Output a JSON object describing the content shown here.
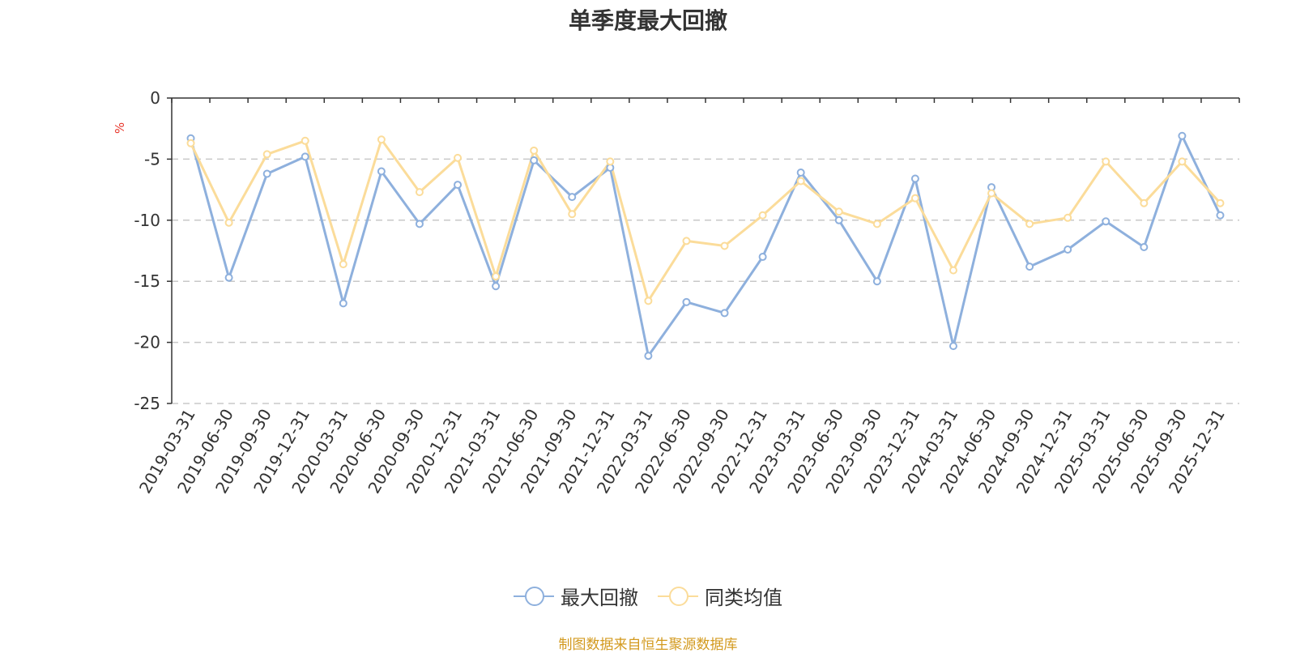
{
  "chart_data": {
    "type": "line",
    "title": "单季度最大回撤",
    "ylabel": "%",
    "xlabel": "",
    "ylim": [
      -25,
      0
    ],
    "yticks": [
      0,
      -5,
      -10,
      -15,
      -20,
      -25
    ],
    "grid": true,
    "legend_position": "bottom",
    "categories": [
      "2019-03-31",
      "2019-06-30",
      "2019-09-30",
      "2019-12-31",
      "2020-03-31",
      "2020-06-30",
      "2020-09-30",
      "2020-12-31",
      "2021-03-31",
      "2021-06-30",
      "2021-09-30",
      "2021-12-31",
      "2022-03-31",
      "2022-06-30",
      "2022-09-30",
      "2022-12-31",
      "2023-03-31",
      "2023-06-30",
      "2023-09-30",
      "2023-12-31",
      "2024-03-31",
      "2024-06-30",
      "2024-09-30",
      "2024-12-31",
      "2025-03-31",
      "2025-06-30",
      "2025-09-30",
      "2025-12-31"
    ],
    "series": [
      {
        "name": "最大回撤",
        "color": "#8eb0dd",
        "values": [
          -3.3,
          -14.7,
          -6.2,
          -4.8,
          -16.8,
          -6.0,
          -10.3,
          -7.1,
          -15.4,
          -5.1,
          -8.1,
          -5.7,
          -21.1,
          -16.7,
          -17.6,
          -13.0,
          -6.1,
          -10.0,
          -15.0,
          -6.6,
          -20.3,
          -7.3,
          -13.8,
          -12.4,
          -10.1,
          -12.2,
          -3.1,
          -9.6
        ]
      },
      {
        "name": "同类均值",
        "color": "#fbdc9a",
        "values": [
          -3.7,
          -10.2,
          -4.6,
          -3.5,
          -13.6,
          -3.4,
          -7.7,
          -4.9,
          -14.6,
          -4.3,
          -9.5,
          -5.2,
          -16.6,
          -11.7,
          -12.1,
          -9.6,
          -6.8,
          -9.3,
          -10.3,
          -8.2,
          -14.1,
          -7.8,
          -10.3,
          -9.8,
          -5.2,
          -8.6,
          -5.2,
          -8.6
        ]
      }
    ]
  },
  "source_note": "制图数据来自恒生聚源数据库"
}
